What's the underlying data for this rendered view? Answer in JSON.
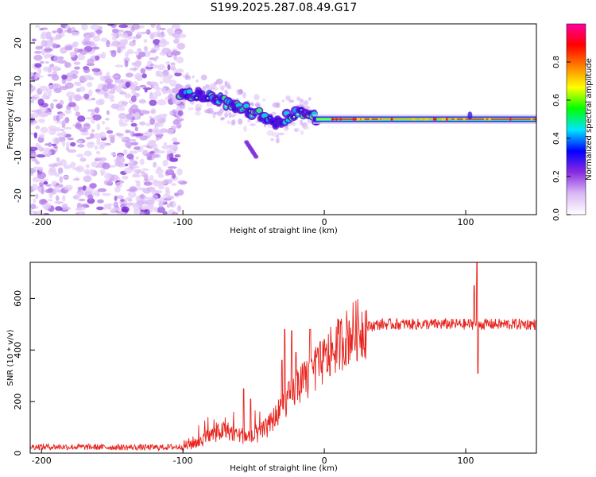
{
  "title": "S199.2025.287.08.49.G17",
  "colors": {
    "frame": "#000000",
    "snr_line": "#e8221c",
    "background": "#ffffff"
  },
  "chart_data": [
    {
      "type": "heatmap",
      "xlabel": "Height of straight line (km)",
      "ylabel": "Frequency (Hz)",
      "xlim": [
        -208,
        150
      ],
      "ylim": [
        -25,
        25
      ],
      "x_ticks": [
        -200,
        -100,
        0,
        100
      ],
      "y_ticks": [
        -20,
        -10,
        0,
        10,
        20
      ],
      "colorbar": {
        "label": "Normalized spectral amplitude",
        "range": [
          0.0,
          1.0
        ],
        "ticks": [
          "0.0",
          "0.2",
          "0.4",
          "0.6",
          "0.8"
        ],
        "colormap": [
          "#ffffff",
          "#d9b8f5",
          "#8a2be2",
          "#0000ff",
          "#00e5ff",
          "#00ff00",
          "#ffff00",
          "#ff8000",
          "#ff0000",
          "#ff00a0"
        ]
      },
      "trend": [
        {
          "x": -100,
          "y": 7
        },
        {
          "x": -80,
          "y": 6
        },
        {
          "x": -60,
          "y": 3
        },
        {
          "x": -45,
          "y": 1
        },
        {
          "x": -33,
          "y": -1
        },
        {
          "x": -20,
          "y": 2
        },
        {
          "x": -10,
          "y": 0.5
        },
        {
          "x": 0,
          "y": 0
        },
        {
          "x": 150,
          "y": 0
        }
      ],
      "branch": [
        {
          "x": -55,
          "y": -6
        },
        {
          "x": -48,
          "y": -10
        }
      ]
    },
    {
      "type": "line",
      "xlabel": "Height of straight line (km)",
      "ylabel": "SNR (10 * v/v)",
      "xlim": [
        -208,
        150
      ],
      "ylim": [
        0,
        740
      ],
      "x_ticks": [
        -200,
        -100,
        0,
        100
      ],
      "y_ticks": [
        0,
        200,
        400,
        600
      ],
      "series": [
        {
          "name": "SNR",
          "trend": [
            {
              "x": -208,
              "y": 25
            },
            {
              "x": -120,
              "y": 22
            },
            {
              "x": -100,
              "y": 25
            },
            {
              "x": -90,
              "y": 45
            },
            {
              "x": -80,
              "y": 70
            },
            {
              "x": -70,
              "y": 90
            },
            {
              "x": -60,
              "y": 70
            },
            {
              "x": -50,
              "y": 60
            },
            {
              "x": -40,
              "y": 100
            },
            {
              "x": -30,
              "y": 180
            },
            {
              "x": -20,
              "y": 250
            },
            {
              "x": -10,
              "y": 300
            },
            {
              "x": 0,
              "y": 360
            },
            {
              "x": 10,
              "y": 420
            },
            {
              "x": 20,
              "y": 470
            },
            {
              "x": 30,
              "y": 490
            },
            {
              "x": 40,
              "y": 500
            },
            {
              "x": 60,
              "y": 500
            },
            {
              "x": 100,
              "y": 500
            },
            {
              "x": 150,
              "y": 500
            }
          ],
          "spikes": [
            {
              "x": -57,
              "y": 250
            },
            {
              "x": -52,
              "y": 210
            },
            {
              "x": -30,
              "y": 360
            },
            {
              "x": -28,
              "y": 480
            },
            {
              "x": -23,
              "y": 475
            },
            {
              "x": -20,
              "y": 390
            },
            {
              "x": -10,
              "y": 480
            },
            {
              "x": 108,
              "y": 740
            },
            {
              "x": 108.6,
              "y": 310
            },
            {
              "x": 106,
              "y": 650
            }
          ]
        }
      ]
    }
  ]
}
